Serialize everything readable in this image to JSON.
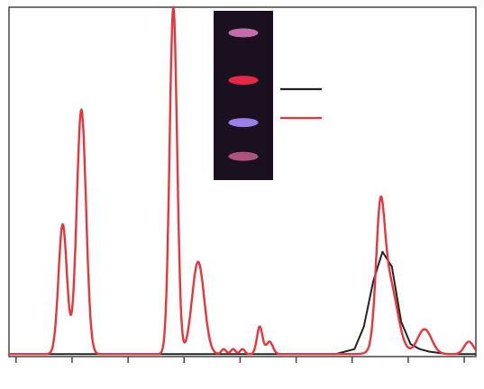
{
  "chart_data": {
    "type": "line",
    "title": "",
    "xlabel": "",
    "ylabel": "",
    "xlim": [
      0,
      100
    ],
    "ylim": [
      0,
      100
    ],
    "grid": false,
    "legend": {
      "placement": "top-right",
      "entries": [
        {
          "name": "",
          "color": "#222222"
        },
        {
          "name": "",
          "color": "#e8343a"
        }
      ]
    },
    "inset": {
      "type": "photo",
      "description_free": true,
      "background": "#1a1020",
      "bands": [
        {
          "color": "#d777b9",
          "y": 0.13
        },
        {
          "color": "#ff2a4a",
          "y": 0.41
        },
        {
          "color": "#a88cff",
          "y": 0.66
        },
        {
          "color": "#c15a8a",
          "y": 0.86
        }
      ]
    },
    "x_ticks": [
      0,
      12,
      24,
      36,
      48,
      60,
      72,
      84,
      96
    ],
    "series": [
      {
        "color": "#222222",
        "x": [
          0,
          10,
          20,
          30,
          40,
          50,
          60,
          70,
          74,
          76,
          78,
          80,
          82,
          84,
          86,
          88,
          90,
          94,
          100
        ],
        "y": [
          1,
          1,
          1,
          1,
          1,
          1,
          1,
          1,
          3,
          12,
          30,
          42,
          36,
          14,
          5,
          3,
          2,
          1,
          1
        ]
      },
      {
        "color": "#e8343a",
        "peaks": [
          {
            "x": 11.5,
            "y": 52,
            "w": 0.9
          },
          {
            "x": 15.5,
            "y": 98,
            "w": 1.0
          },
          {
            "x": 35.2,
            "y": 139,
            "w": 0.8
          },
          {
            "x": 40.5,
            "y": 37,
            "w": 1.3
          },
          {
            "x": 46,
            "y": 2,
            "w": 0.5
          },
          {
            "x": 48,
            "y": 2,
            "w": 0.5
          },
          {
            "x": 50,
            "y": 2,
            "w": 0.5
          },
          {
            "x": 53.7,
            "y": 11,
            "w": 0.6
          },
          {
            "x": 55.8,
            "y": 5,
            "w": 0.7
          },
          {
            "x": 79.5,
            "y": 44,
            "w": 0.9
          },
          {
            "x": 81.3,
            "y": 30,
            "w": 1.8
          },
          {
            "x": 89,
            "y": 10,
            "w": 1.5
          },
          {
            "x": 98.5,
            "y": 5,
            "w": 1.0
          }
        ],
        "baseline": 1
      }
    ]
  }
}
